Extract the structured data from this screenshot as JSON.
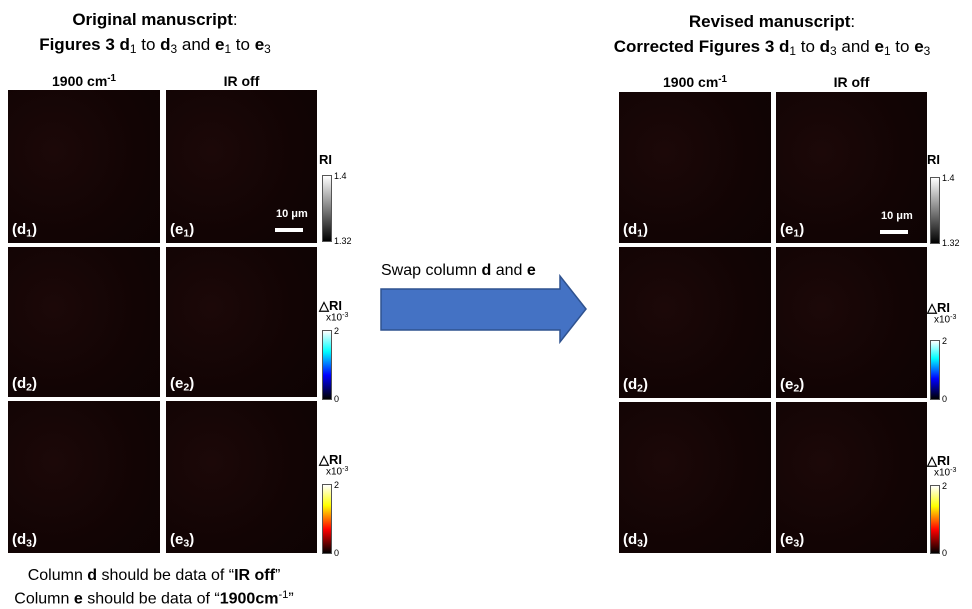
{
  "left": {
    "title": {
      "line1": [
        "Original manuscript",
        ":"
      ],
      "line2": [
        "Figures 3 ",
        "d",
        "1",
        " to ",
        "d",
        "3",
        " and ",
        "e",
        "1",
        " to ",
        "e",
        "3"
      ]
    },
    "columns": [
      [
        "1900 cm",
        "-1"
      ],
      [
        "IR off"
      ]
    ],
    "panels": [
      [
        [
          "(d",
          "1",
          ")"
        ],
        [
          "(e",
          "1",
          ")"
        ]
      ],
      [
        [
          "(d",
          "2",
          ")"
        ],
        [
          "(e",
          "2",
          ")"
        ]
      ],
      [
        [
          "(d",
          "3",
          ")"
        ],
        [
          "(e",
          "3",
          ")"
        ]
      ]
    ],
    "scale_bar": "10 μm",
    "colorbars": [
      {
        "label": "RI",
        "top": "1.4",
        "bottom": "1.32"
      },
      {
        "label": "△RI",
        "exp": [
          "x10",
          "-3"
        ],
        "top": "2",
        "bottom": "0"
      },
      {
        "label": "△RI",
        "exp": [
          "x10",
          "-3"
        ],
        "top": "2",
        "bottom": "0"
      }
    ]
  },
  "right": {
    "title": {
      "line1": [
        "Revised manuscript",
        ":"
      ],
      "line2": [
        "Corrected Figures 3 ",
        "d",
        "1",
        " to ",
        "d",
        "3",
        " and ",
        "e",
        "1",
        " to ",
        "e",
        "3"
      ]
    },
    "columns": [
      [
        "1900 cm",
        "-1"
      ],
      [
        "IR off"
      ]
    ],
    "panels": [
      [
        [
          "(d",
          "1",
          ")"
        ],
        [
          "(e",
          "1",
          ")"
        ]
      ],
      [
        [
          "(d",
          "2",
          ")"
        ],
        [
          "(e",
          "2",
          ")"
        ]
      ],
      [
        [
          "(d",
          "3",
          ")"
        ],
        [
          "(e",
          "3",
          ")"
        ]
      ]
    ],
    "scale_bar": "10 μm",
    "colorbars": [
      {
        "label": "RI",
        "top": "1.4",
        "bottom": "1.32"
      },
      {
        "label": "△RI",
        "exp": [
          "x10",
          "-3"
        ],
        "top": "2",
        "bottom": "0"
      },
      {
        "label": "△RI",
        "exp": [
          "x10",
          "-3"
        ],
        "top": "2",
        "bottom": "0"
      }
    ]
  },
  "arrow": {
    "text": [
      "Swap column ",
      "d",
      " and ",
      "e"
    ]
  },
  "note": {
    "line1": [
      "Column ",
      "d",
      " should be data of “",
      "IR off",
      "”"
    ],
    "line2": [
      "Column ",
      "e",
      " should be data of “",
      "1900cm",
      "-1",
      "”"
    ]
  }
}
